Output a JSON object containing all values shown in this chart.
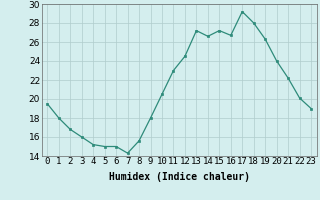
{
  "x": [
    0,
    1,
    2,
    3,
    4,
    5,
    6,
    7,
    8,
    9,
    10,
    11,
    12,
    13,
    14,
    15,
    16,
    17,
    18,
    19,
    20,
    21,
    22,
    23
  ],
  "y": [
    19.5,
    18.0,
    16.8,
    16.0,
    15.2,
    15.0,
    15.0,
    14.3,
    15.6,
    18.0,
    20.5,
    23.0,
    24.5,
    27.2,
    26.6,
    27.2,
    26.7,
    29.2,
    28.0,
    26.3,
    24.0,
    22.2,
    20.1,
    19.0
  ],
  "line_color": "#2e8b7a",
  "marker_color": "#2e8b7a",
  "bg_color": "#d4eeee",
  "grid_color": "#b0cccc",
  "xlabel": "Humidex (Indice chaleur)",
  "ylim": [
    14,
    30
  ],
  "xlim": [
    -0.5,
    23.5
  ],
  "yticks": [
    14,
    16,
    18,
    20,
    22,
    24,
    26,
    28,
    30
  ],
  "xtick_labels": [
    "0",
    "1",
    "2",
    "3",
    "4",
    "5",
    "6",
    "7",
    "8",
    "9",
    "10",
    "11",
    "12",
    "13",
    "14",
    "15",
    "16",
    "17",
    "18",
    "19",
    "20",
    "21",
    "22",
    "23"
  ],
  "label_fontsize": 7,
  "tick_fontsize": 6.5
}
